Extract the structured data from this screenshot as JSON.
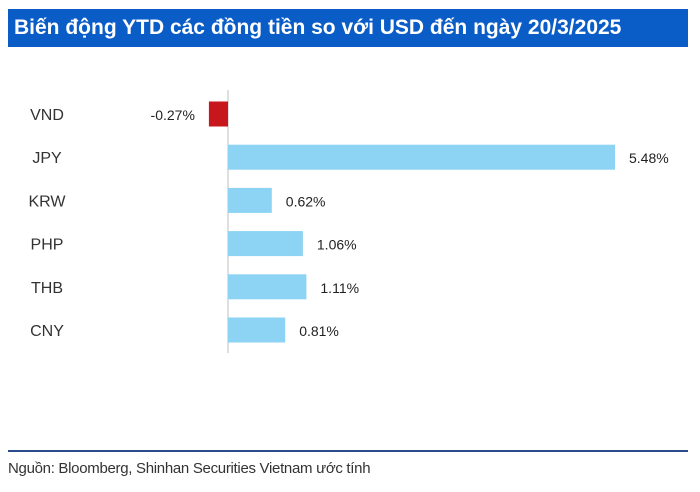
{
  "header": {
    "title": "Biến động YTD các đồng tiền so với USD đến ngày 20/3/2025"
  },
  "footer": {
    "source": "Nguồn: Bloomberg, Shinhan Securities Vietnam ước tính"
  },
  "colors": {
    "title_bg": "#0a5cc7",
    "positive": "#8dd3f3",
    "negative": "#c8161d"
  },
  "chart_data": {
    "type": "bar",
    "orientation": "horizontal",
    "categories": [
      "VND",
      "JPY",
      "KRW",
      "PHP",
      "THB",
      "CNY"
    ],
    "values": [
      -0.27,
      5.48,
      0.62,
      1.06,
      1.11,
      0.81
    ],
    "value_labels": [
      "-0.27%",
      "5.48%",
      "0.62%",
      "1.06%",
      "1.11%",
      "0.81%"
    ],
    "xlim": [
      -0.27,
      5.48
    ],
    "grid": false,
    "legend": "none"
  }
}
